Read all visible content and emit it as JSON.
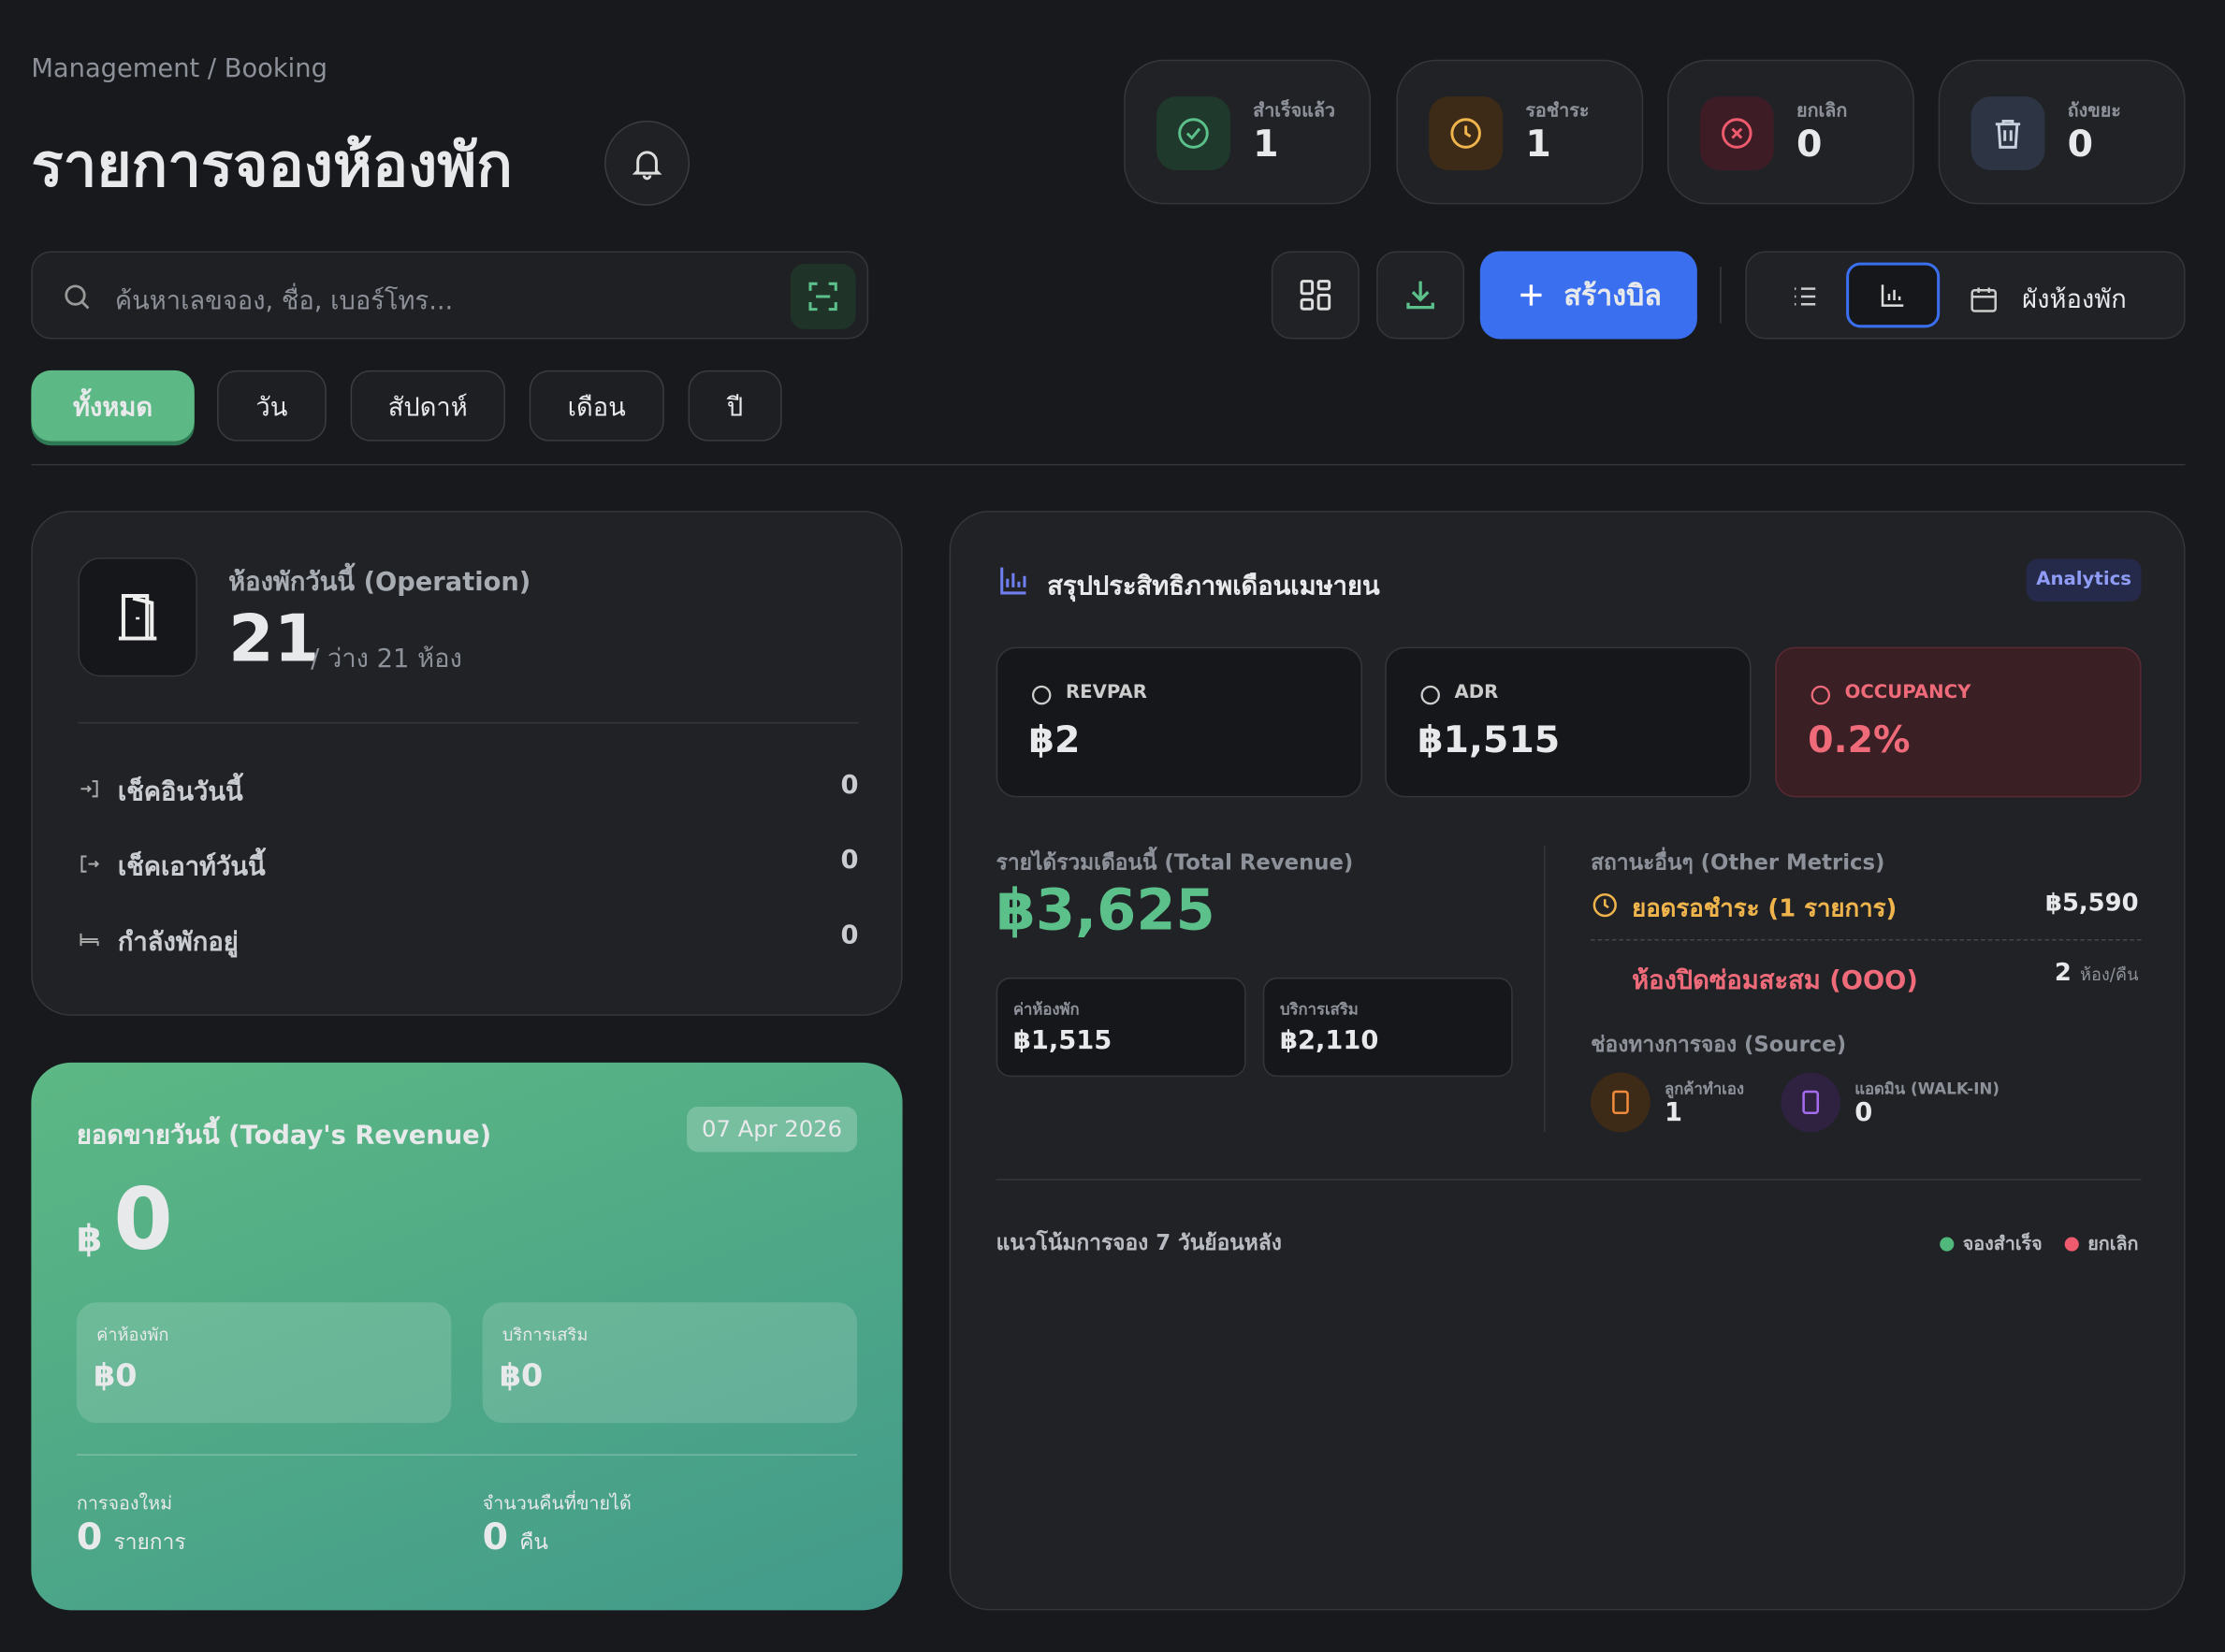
{
  "breadcrumb": "Management / Booking",
  "header": {
    "title": "รายการจองห้องพัก"
  },
  "status_cards": [
    {
      "label": "สำเร็จแล้ว",
      "count": 1
    },
    {
      "label": "รอชำระ",
      "count": 1
    },
    {
      "label": "ยกเลิก",
      "count": 0
    },
    {
      "label": "ถังขยะ",
      "count": 0
    }
  ],
  "search": {
    "placeholder": "ค้นหาเลขจอง, ชื่อ, เบอร์โทร..."
  },
  "toolbar": {
    "create_button": "สร้างบิล",
    "room_map": "ผังห้องพัก"
  },
  "filters": [
    "ทั้งหมด",
    "วัน",
    "สัปดาห์",
    "เดือน",
    "ปี"
  ],
  "operation": {
    "title": "ห้องพักวันนี้ (Operation)",
    "total": 21,
    "available_text": "/ ว่าง 21 ห้อง",
    "rows": [
      {
        "label": "เช็คอินวันนี้",
        "value": 0
      },
      {
        "label": "เช็คเอาท์วันนี้",
        "value": 0
      },
      {
        "label": "กำลังพักอยู่",
        "value": 0
      }
    ]
  },
  "today_revenue": {
    "title": "ยอดขายวันนี้ (Today's Revenue)",
    "date": "07 Apr 2026",
    "currency": "฿",
    "amount": 0,
    "room": {
      "label": "ค่าห้องพัก",
      "value": "฿0"
    },
    "service": {
      "label": "บริการเสริม",
      "value": "฿0"
    },
    "new_bookings": {
      "label": "การจองใหม่",
      "value": 0,
      "unit": "รายการ"
    },
    "nights_sold": {
      "label": "จำนวนคืนที่ขายได้",
      "value": 0,
      "unit": "คืน"
    }
  },
  "analytics": {
    "title": "สรุปประสิทธิภาพเดือนเมษายน",
    "badge": "Analytics",
    "kpis": [
      {
        "label": "REVPAR",
        "value": "฿2"
      },
      {
        "label": "ADR",
        "value": "฿1,515"
      },
      {
        "label": "OCCUPANCY",
        "value": "0.2%"
      }
    ],
    "total_revenue": {
      "label": "รายได้รวมเดือนนี้ (Total Revenue)",
      "value": "฿3,625",
      "breakdown": [
        {
          "label": "ค่าห้องพัก",
          "value": "฿1,515"
        },
        {
          "label": "บริการเสริม",
          "value": "฿2,110"
        }
      ]
    },
    "other_metrics": {
      "title": "สถานะอื่นๆ (Other Metrics)",
      "pending": {
        "label": "ยอดรอชำระ (1 รายการ)",
        "value": "฿5,590"
      },
      "maintenance": {
        "label": "ห้องปิดซ่อมสะสม (OOO)",
        "value": 2,
        "unit": "ห้อง/คืน"
      }
    },
    "source": {
      "title": "ช่องทางการจอง (Source)",
      "items": [
        {
          "label": "ลูกค้าทำเอง",
          "value": 1
        },
        {
          "label": "แอดมิน (WALK-IN)",
          "value": 0
        }
      ]
    },
    "trend": {
      "title": "แนวโน้มการจอง 7 วันย้อนหลัง",
      "legend": [
        "จองสำเร็จ",
        "ยกเลิก"
      ]
    }
  }
}
